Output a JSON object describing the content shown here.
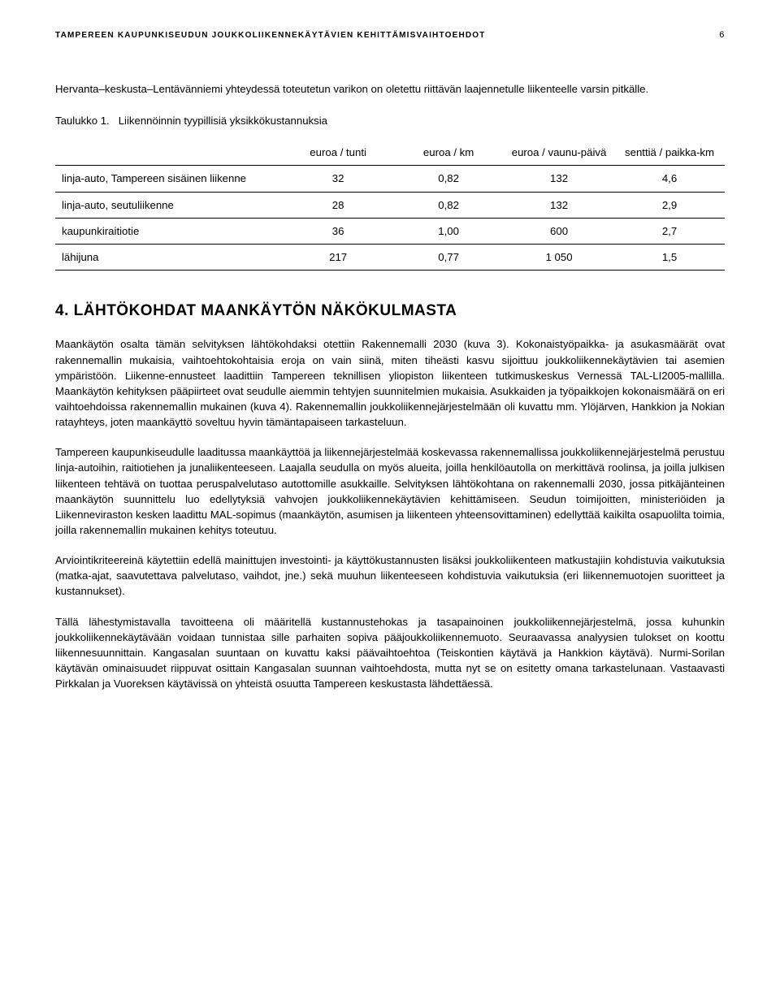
{
  "header": {
    "doc_title": "TAMPEREEN KAUPUNKISEUDUN JOUKKOLIIKENNEKÄYTÄVIEN KEHITTÄMISVAIHTOEHDOT",
    "page_number": "6"
  },
  "intro_text": "Hervanta–keskusta–Lentävänniemi yhteydessä toteutetun varikon on oletettu riittävän laajennetulle liikenteelle varsin pitkälle.",
  "table": {
    "caption_prefix": "Taulukko 1.",
    "caption_rest": "Liikennöinnin tyypillisiä yksikkökustannuksia",
    "columns": [
      "",
      "euroa / tunti",
      "euroa / km",
      "euroa / vaunu-päivä",
      "senttiä / paikka-km"
    ],
    "column_widths_pct": [
      34,
      16.5,
      16.5,
      16.5,
      16.5
    ],
    "rows": [
      {
        "label": "linja-auto, Tampereen sisäinen liikenne",
        "vals": [
          "32",
          "0,82",
          "132",
          "4,6"
        ]
      },
      {
        "label": "linja-auto, seutuliikenne",
        "vals": [
          "28",
          "0,82",
          "132",
          "2,9"
        ]
      },
      {
        "label": "kaupunkiraitiotie",
        "vals": [
          "36",
          "1,00",
          "600",
          "2,7"
        ]
      },
      {
        "label": "lähijuna",
        "vals": [
          "217",
          "0,77",
          "1 050",
          "1,5"
        ]
      }
    ],
    "border_color": "#000000",
    "font_size_pt": 10,
    "cell_align": "center",
    "header_align": "center"
  },
  "section4": {
    "number": "4.",
    "title": "LÄHTÖKOHDAT MAANKÄYTÖN NÄKÖKULMASTA",
    "p1": "Maankäytön osalta tämän selvityksen lähtökohdaksi otettiin Rakennemalli 2030 (kuva 3). Kokonaistyöpaikka- ja asukasmäärät ovat rakennemallin mukaisia, vaihtoehtokohtaisia eroja on vain siinä, miten tiheästi kasvu sijoittuu joukkoliikennekäytävien tai asemien ympäristöön. Liikenne-ennusteet laadittiin Tampereen teknillisen yliopiston liikenteen tutkimuskeskus Vernessä TAL-LI2005-mallilla. Maankäytön kehityksen pääpiirteet ovat seudulle aiemmin tehtyjen suunnitelmien mukaisia. Asukkaiden ja työpaikkojen kokonaismäärä on eri vaihtoehdoissa rakennemallin mukainen (kuva 4). Rakennemallin joukkoliikennejärjestelmään oli kuvattu mm. Ylöjärven, Hankkion ja Nokian ratayhteys, joten maankäyttö soveltuu hyvin tämäntapaiseen tarkasteluun.",
    "p2": "Tampereen kaupunkiseudulle laaditussa maankäyttöä ja liikennejärjestelmää koskevassa rakennemallissa joukkoliikennejärjestelmä perustuu linja-autoihin, raitiotiehen ja junaliikenteeseen. Laajalla seudulla on myös alueita, joilla henkilöautolla on merkittävä roolinsa, ja joilla julkisen liikenteen tehtävä on tuottaa peruspalvelutaso autottomille asukkaille. Selvityksen lähtökohtana on rakennemalli 2030, jossa pitkäjänteinen maankäytön suunnittelu luo edellytyksiä vahvojen joukkoliikennekäytävien kehittämiseen. Seudun toimijoitten, ministeriöiden ja Liikenneviraston kesken laadittu MAL-sopimus (maankäytön, asumisen ja liikenteen yhteensovittaminen) edellyttää kaikilta osapuolilta toimia, joilla rakennemallin mukainen kehitys toteutuu.",
    "p3": "Arviointikriteereinä käytettiin edellä mainittujen investointi- ja käyttökustannusten lisäksi joukkoliikenteen matkustajiin kohdistuvia vaikutuksia (matka-ajat, saavutettava palvelutaso, vaihdot, jne.) sekä muuhun liikenteeseen kohdistuvia vaikutuksia (eri liikennemuotojen suoritteet ja kustannukset).",
    "p4": "Tällä lähestymistavalla tavoitteena oli määritellä kustannustehokas ja tasapainoinen joukkoliikennejärjestelmä, jossa kuhunkin joukkoliikennekäytävään voidaan tunnistaa sille parhaiten sopiva pääjoukkoliikennemuoto. Seuraavassa analyysien tulokset on koottu liikennesuunnittain. Kangasalan suuntaan on kuvattu kaksi päävaihtoehtoa (Teiskontien käytävä ja Hankkion käytävä). Nurmi-Sorilan käytävän ominaisuudet riippuvat osittain Kangasalan suunnan vaihtoehdosta, mutta nyt se on esitetty omana tarkastelunaan. Vastaavasti Pirkkalan ja Vuoreksen käytävissä on yhteistä osuutta Tampereen keskustasta lähdettäessä."
  }
}
